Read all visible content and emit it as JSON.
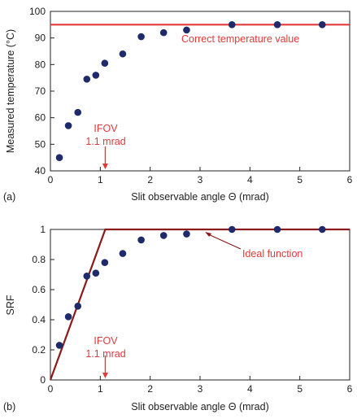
{
  "chart_data": [
    {
      "type": "scatter",
      "panel_label": "(a)",
      "xlabel": "Slit observable angle Θ (mrad)",
      "ylabel": "Measured temperature (°C)",
      "xlim": [
        0,
        6
      ],
      "ylim": [
        40,
        100
      ],
      "xticks": [
        0,
        1,
        2,
        3,
        4,
        5,
        6
      ],
      "yticks": [
        40,
        50,
        60,
        70,
        80,
        90,
        100
      ],
      "grid": false,
      "series": [
        {
          "values_x": [
            0.18,
            0.36,
            0.55,
            0.73,
            0.91,
            1.09,
            1.45,
            1.82,
            2.27,
            2.73,
            3.64,
            4.55,
            5.45
          ],
          "values_y": [
            45,
            57,
            62,
            74.5,
            76,
            80.5,
            84,
            90.5,
            92,
            93,
            95,
            95,
            95
          ],
          "color": "#1f2a6b"
        }
      ],
      "reference_line": {
        "y": 95,
        "color": "#e03a3a"
      },
      "annotations": {
        "line_label": "Correct temperature value",
        "ifov_line1": "IFOV",
        "ifov_line2": "1.1 mrad",
        "ifov_x": 1.1
      }
    },
    {
      "type": "scatter",
      "panel_label": "(b)",
      "xlabel": "Slit observable angle Θ (mrad)",
      "ylabel": "SRF",
      "xlim": [
        0,
        6
      ],
      "ylim": [
        0,
        1
      ],
      "xticks": [
        0,
        1,
        2,
        3,
        4,
        5,
        6
      ],
      "yticks": [
        0,
        0.2,
        0.4,
        0.6,
        0.8,
        1
      ],
      "grid": false,
      "series": [
        {
          "values_x": [
            0.18,
            0.36,
            0.55,
            0.73,
            0.91,
            1.09,
            1.45,
            1.82,
            2.27,
            2.73,
            3.64,
            4.55,
            5.45
          ],
          "values_y": [
            0.23,
            0.42,
            0.49,
            0.69,
            0.71,
            0.78,
            0.84,
            0.93,
            0.96,
            0.97,
            1.0,
            1.0,
            1.0
          ],
          "color": "#1f2a6b"
        }
      ],
      "ideal_function": {
        "x": [
          0,
          1.1,
          6
        ],
        "y": [
          0,
          1,
          1
        ],
        "color": "#8b1a1a"
      },
      "annotations": {
        "line_label": "Ideal function",
        "ifov_line1": "IFOV",
        "ifov_line2": "1.1 mrad",
        "ifov_x": 1.1
      }
    }
  ]
}
